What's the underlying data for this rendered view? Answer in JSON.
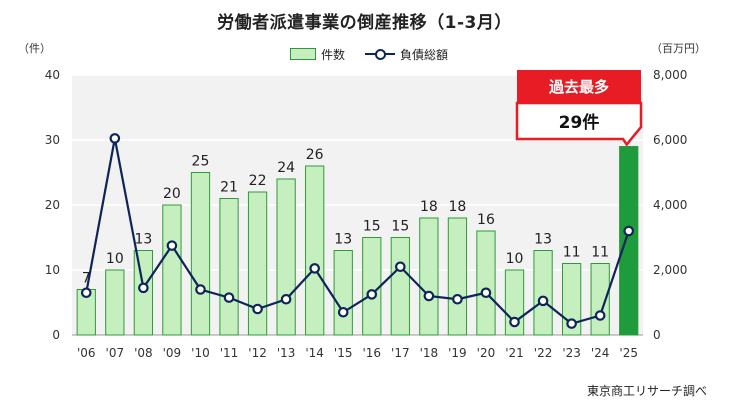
{
  "chart_data": {
    "type": "bar",
    "title": "労働者派遣事業の倒産推移（1-3月）",
    "categories": [
      "'06",
      "'07",
      "'08",
      "'09",
      "'10",
      "'11",
      "'12",
      "'13",
      "'14",
      "'15",
      "'16",
      "'17",
      "'18",
      "'19",
      "'20",
      "'21",
      "'22",
      "'23",
      "'24",
      "'25"
    ],
    "series": [
      {
        "name": "件数",
        "type": "bar",
        "axis": "left",
        "values": [
          7,
          10,
          13,
          20,
          25,
          21,
          22,
          24,
          26,
          13,
          15,
          15,
          18,
          18,
          16,
          10,
          13,
          11,
          11,
          29
        ],
        "color": "#c6efc0",
        "edge_color": "#2f9a3a",
        "highlight_color": "#1e9b3a",
        "highlight_index": 19
      },
      {
        "name": "負債総額",
        "type": "line",
        "axis": "right",
        "values": [
          1300,
          6050,
          1450,
          2750,
          1400,
          1150,
          800,
          1100,
          2050,
          700,
          1250,
          2100,
          1200,
          1100,
          1300,
          400,
          1050,
          350,
          600,
          3200
        ],
        "color": "#0d2559"
      }
    ],
    "y_left": {
      "unit": "（件）",
      "min": 0,
      "max": 40,
      "ticks": [
        0,
        10,
        20,
        30,
        40
      ]
    },
    "y_right": {
      "unit": "（百万円）",
      "min": 0,
      "max": 8000,
      "ticks": [
        "0",
        "2,000",
        "4,000",
        "6,000",
        "8,000"
      ]
    },
    "grid": true,
    "legend": "top-center",
    "annotation": {
      "header": "過去最多",
      "value": "29件",
      "target_index": 19
    },
    "source": "東京商工リサーチ調べ"
  }
}
